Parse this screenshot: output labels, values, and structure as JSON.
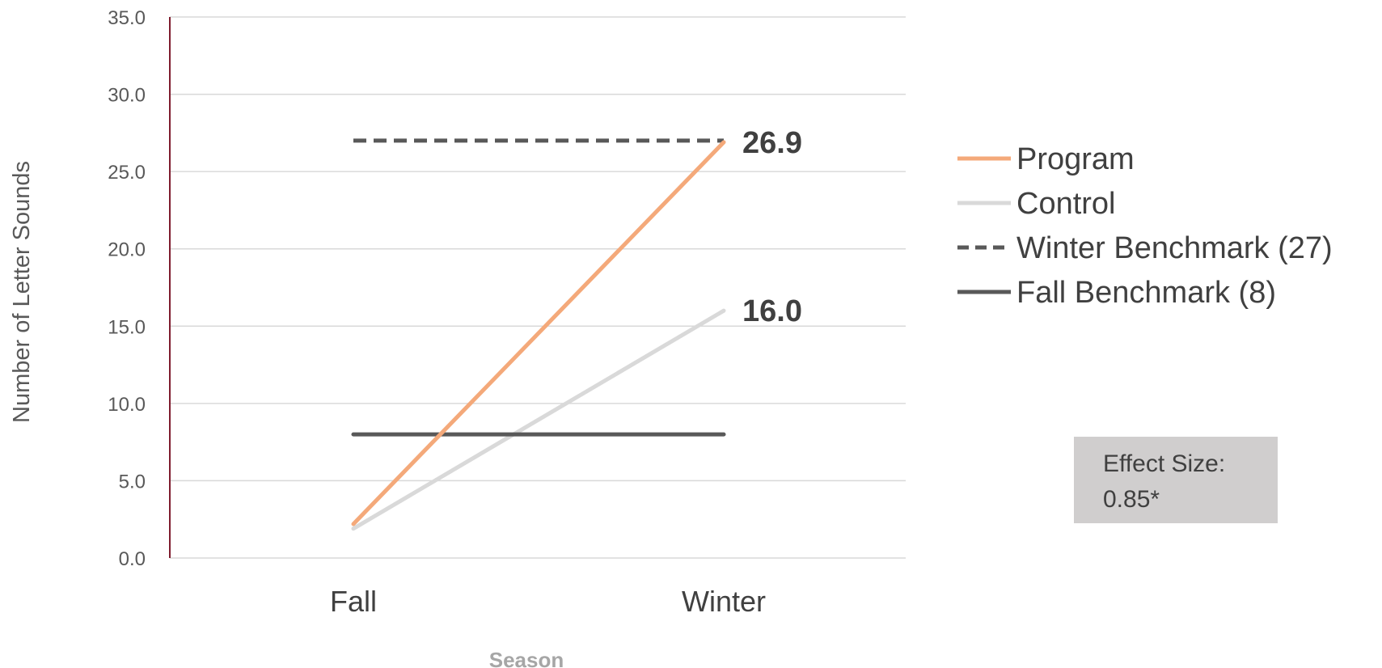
{
  "chart_data": {
    "type": "line",
    "categories": [
      "Fall",
      "Winter"
    ],
    "xlabel": "Season",
    "ylabel": "Number of Letter Sounds",
    "ylim": [
      0,
      35
    ],
    "yticks": [
      "0.0",
      "5.0",
      "10.0",
      "15.0",
      "20.0",
      "25.0",
      "30.0",
      "35.0"
    ],
    "grid": true,
    "legend_position": "right",
    "series": [
      {
        "name": "Program",
        "values": [
          2.2,
          26.9
        ],
        "color": "#F4A97A",
        "style": "solid",
        "end_label": "26.9"
      },
      {
        "name": "Control",
        "values": [
          1.9,
          16.0
        ],
        "color": "#D9D9D9",
        "style": "solid",
        "end_label": "16.0"
      },
      {
        "name": "Winter Benchmark (27)",
        "values": [
          27,
          27
        ],
        "color": "#595959",
        "style": "dashed",
        "end_label": ""
      },
      {
        "name": "Fall Benchmark (8)",
        "values": [
          8,
          8
        ],
        "color": "#595959",
        "style": "solid",
        "end_label": ""
      }
    ],
    "annotation": {
      "lines": [
        "Effect Size:",
        "0.85*"
      ],
      "background": "#D0CECE"
    },
    "axis_color": "#7F1C2E"
  }
}
